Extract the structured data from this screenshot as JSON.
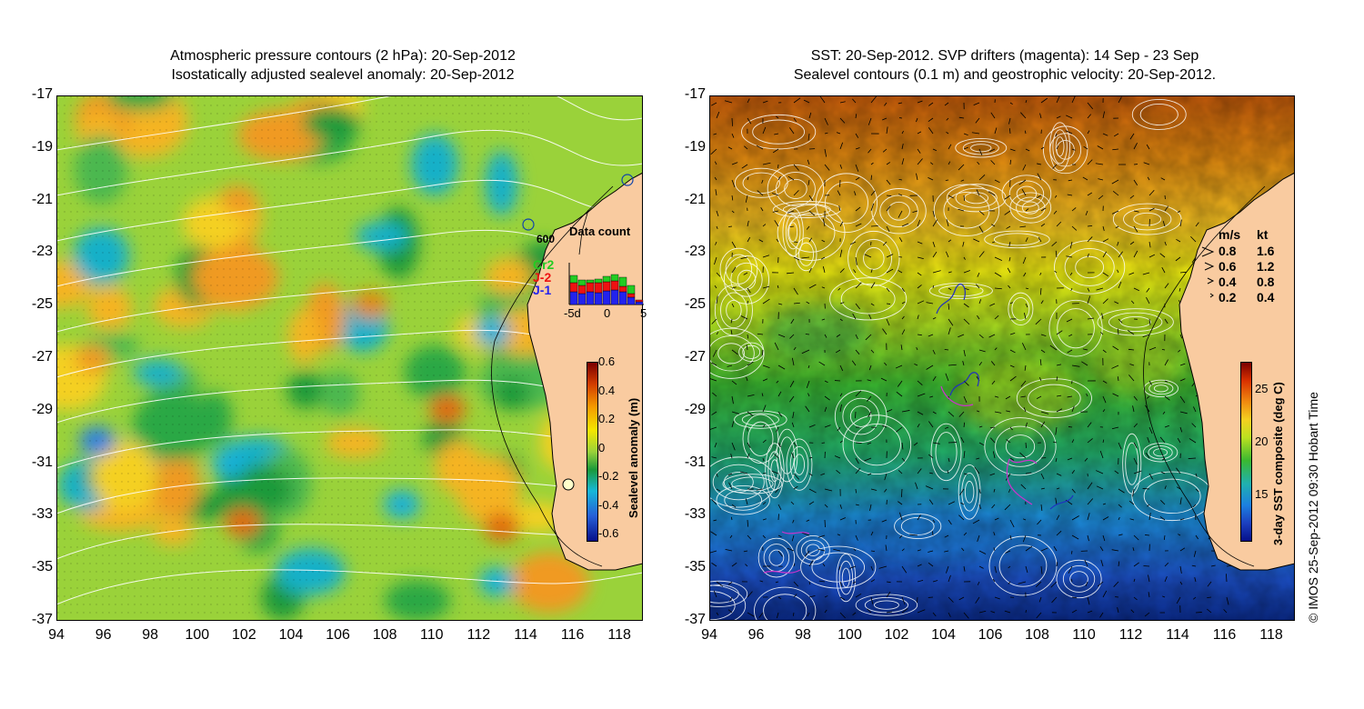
{
  "left": {
    "title_line1": "Atmospheric pressure contours (2 hPa): 20-Sep-2012",
    "title_line2": "Isostatically adjusted sealevel anomaly: 20-Sep-2012",
    "colorbar_label": "Sealevel anomaly (m)",
    "colorbar_ticks": [
      "0.6",
      "0.4",
      "0.2",
      "0",
      "-0.2",
      "-0.4",
      "-0.6"
    ],
    "depth_label": "600",
    "data_count": {
      "title": "Data count",
      "satellites": [
        {
          "name": "Cr2",
          "color": "#22cc22"
        },
        {
          "name": "J-2",
          "color": "#ee1111"
        },
        {
          "name": "J-1",
          "color": "#2222ee"
        }
      ],
      "x_ticks": [
        "-5d",
        "0",
        "5"
      ]
    }
  },
  "right": {
    "title_line1": "SST: 20-Sep-2012. SVP drifters (magenta): 14 Sep - 23 Sep",
    "title_line2": "Sealevel contours (0.1 m) and geostrophic velocity: 20-Sep-2012.",
    "colorbar_label": "3-day SST composite (deg C)",
    "colorbar_ticks": [
      "25",
      "20",
      "15"
    ],
    "velocity_legend": {
      "header_ms": "m/s",
      "header_kt": "kt",
      "rows": [
        {
          "ms": "0.8",
          "kt": "1.6"
        },
        {
          "ms": "0.6",
          "kt": "1.2"
        },
        {
          "ms": "0.4",
          "kt": "0.8"
        },
        {
          "ms": "0.2",
          "kt": "0.4"
        }
      ]
    }
  },
  "axes": {
    "lat_ticks": [
      "-17",
      "-19",
      "-21",
      "-23",
      "-25",
      "-27",
      "-29",
      "-31",
      "-33",
      "-35",
      "-37"
    ],
    "lon_ticks": [
      "94",
      "96",
      "98",
      "100",
      "102",
      "104",
      "106",
      "108",
      "110",
      "112",
      "114",
      "116",
      "118"
    ]
  },
  "credit": "© IMOS 25-Sep-2012 09:30 Hobart Time",
  "colors": {
    "land": "#f9cba0",
    "coast": "#000000"
  }
}
